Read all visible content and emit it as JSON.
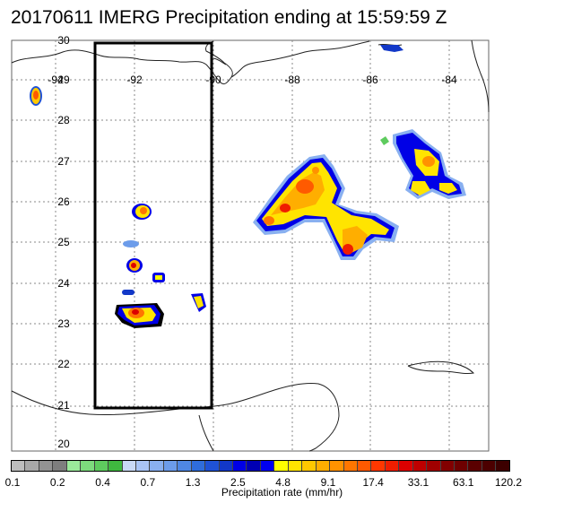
{
  "title": "20170611 IMERG Precipitation ending at 15:59:59 Z",
  "map": {
    "lon_labels": [
      "-94",
      "-92",
      "-90",
      "-88",
      "-86",
      "-84"
    ],
    "lat_labels": [
      "20",
      "21",
      "22",
      "23",
      "24",
      "25",
      "26",
      "27",
      "28",
      "29",
      "30"
    ]
  },
  "colorbar": {
    "label": "Precipitation rate (mm/hr)",
    "ticks": [
      "0.1",
      "0.2",
      "0.4",
      "0.7",
      "1.3",
      "2.5",
      "4.8",
      "9.1",
      "17.4",
      "33.1",
      "63.1",
      "120.2"
    ],
    "colors": [
      "#bdbdbd",
      "#a8a8a8",
      "#939393",
      "#7e7e7e",
      "#9bea9b",
      "#7ddb7d",
      "#5ecb5e",
      "#3fb83f",
      "#c9d9f5",
      "#a9c4f5",
      "#89b0f0",
      "#6c9cea",
      "#4f87e3",
      "#2f6ddb",
      "#1f52d6",
      "#1238c8",
      "#0000e6",
      "#0000b4",
      "#0000f0",
      "#ffff00",
      "#ffe400",
      "#ffc800",
      "#ffae00",
      "#ff9200",
      "#ff7600",
      "#ff5a00",
      "#ff3800",
      "#f01e00",
      "#dc0000",
      "#be0000",
      "#a00000",
      "#820000",
      "#6e0000",
      "#5a0000",
      "#4c0000",
      "#3c0000"
    ]
  }
}
